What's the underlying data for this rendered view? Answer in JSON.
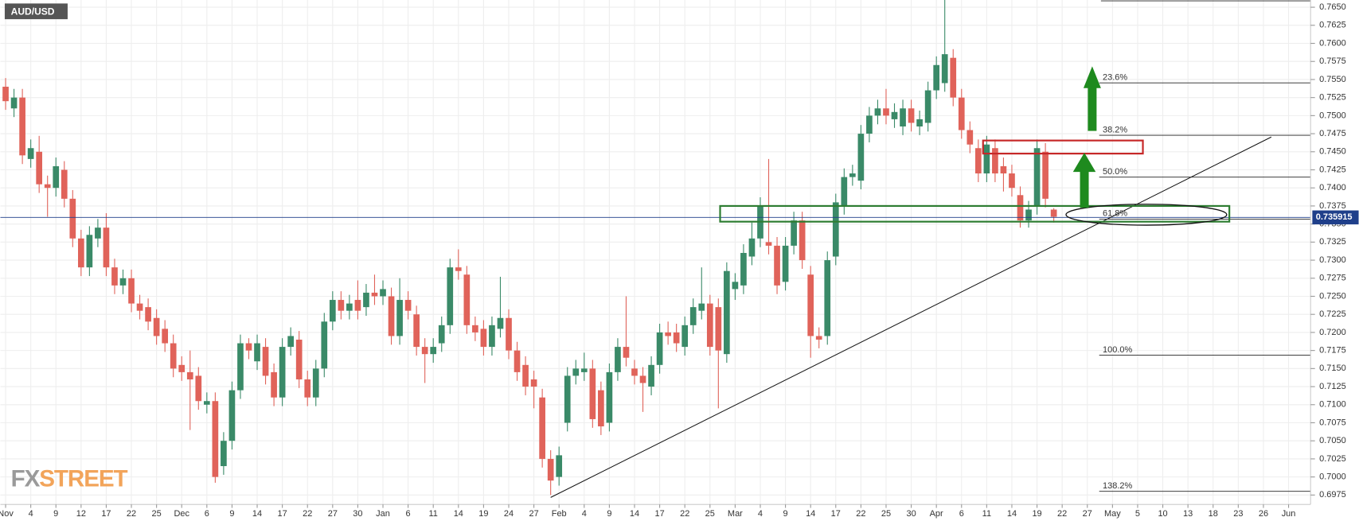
{
  "chart_data": {
    "type": "candlestick",
    "title": "AUD/USD",
    "categories": [
      "Nov",
      null,
      null,
      "4",
      null,
      null,
      "9",
      null,
      null,
      "12",
      null,
      null,
      "17",
      null,
      null,
      "22",
      null,
      null,
      "25",
      null,
      null,
      "Dec",
      null,
      null,
      "6",
      null,
      null,
      "9",
      null,
      null,
      "14",
      null,
      null,
      "17",
      null,
      null,
      "22",
      null,
      null,
      "27",
      null,
      null,
      "30",
      null,
      null,
      "Jan",
      null,
      null,
      "6",
      null,
      null,
      "11",
      null,
      null,
      "14",
      null,
      null,
      "19",
      null,
      null,
      "24",
      null,
      null,
      "27",
      null,
      null,
      "Feb",
      null,
      null,
      "4",
      null,
      null,
      "9",
      null,
      null,
      "14",
      null,
      null,
      "17",
      null,
      null,
      "22",
      null,
      null,
      "25",
      null,
      null,
      "Mar",
      null,
      null,
      "4",
      null,
      null,
      "9",
      null,
      null,
      "14",
      null,
      null,
      "17",
      null,
      null,
      "22",
      null,
      null,
      "25",
      null,
      null,
      "30",
      null,
      null,
      "Apr",
      null,
      null,
      "6",
      null,
      null,
      "11",
      null,
      null,
      "14",
      null,
      null,
      "19",
      null,
      null,
      "22",
      null,
      null,
      "27",
      null,
      null,
      "May",
      null,
      null,
      "5",
      null,
      null,
      "10",
      null,
      null,
      "13",
      null,
      null,
      "18",
      null,
      null,
      "23",
      null,
      null,
      "26",
      null,
      null,
      "Jun"
    ],
    "open": [
      0.754,
      0.751,
      0.7525,
      0.744,
      0.745,
      0.7405,
      0.74,
      0.7425,
      0.7385,
      0.733,
      0.729,
      0.733,
      0.7345,
      0.729,
      0.7265,
      0.7275,
      0.724,
      0.7235,
      0.722,
      0.7205,
      0.7185,
      0.7155,
      0.7145,
      0.714,
      0.71,
      0.7105,
      0.7015,
      0.705,
      0.712,
      0.7185,
      0.716,
      0.718,
      0.7145,
      0.711,
      0.718,
      0.719,
      0.7135,
      0.711,
      0.715,
      0.7215,
      0.7245,
      0.723,
      0.7245,
      0.7235,
      0.7255,
      0.725,
      0.725,
      0.7195,
      0.7245,
      0.7225,
      0.718,
      0.717,
      0.7185,
      0.721,
      0.729,
      0.728,
      0.721,
      0.7205,
      0.718,
      0.7205,
      0.722,
      0.7175,
      0.7155,
      0.7135,
      0.711,
      0.7025,
      0.7,
      0.7075,
      0.714,
      0.7145,
      0.715,
      0.712,
      0.7075,
      0.7145,
      0.718,
      0.715,
      0.714,
      0.7125,
      0.7155,
      0.72,
      0.72,
      0.718,
      0.721,
      0.723,
      0.724,
      0.7235,
      0.717,
      0.726,
      0.7265,
      0.7305,
      0.733,
      0.7325,
      0.732,
      0.727,
      0.732,
      0.7355,
      0.728,
      0.7195,
      0.7195,
      0.7305,
      0.7375,
      0.7415,
      0.741,
      0.7475,
      0.75,
      0.751,
      0.7495,
      0.7485,
      0.751,
      0.7485,
      0.749,
      0.7535,
      0.7545,
      0.758,
      0.7525,
      0.748,
      0.7455,
      0.742,
      0.7455,
      0.743,
      0.742,
      0.739,
      0.7355,
      0.7375,
      0.745,
      0.737,
      null,
      null,
      null,
      null,
      null,
      null,
      null,
      null,
      null,
      null,
      null,
      null,
      null,
      null,
      null,
      null,
      null,
      null,
      null,
      null,
      null,
      null,
      null,
      null,
      null,
      null,
      null,
      null
    ],
    "high": [
      0.7552,
      0.7537,
      0.7537,
      0.7467,
      0.7472,
      0.7417,
      0.7442,
      0.7437,
      0.7397,
      0.7342,
      0.7347,
      0.7357,
      0.7365,
      0.7302,
      0.7287,
      0.7287,
      0.7252,
      0.7247,
      0.7232,
      0.7217,
      0.7197,
      0.7167,
      0.7175,
      0.7152,
      0.7117,
      0.7117,
      0.7062,
      0.7132,
      0.7197,
      0.7192,
      0.7197,
      0.7192,
      0.7157,
      0.7192,
      0.7207,
      0.7202,
      0.7147,
      0.7162,
      0.7227,
      0.7257,
      0.7257,
      0.7252,
      0.7272,
      0.7267,
      0.728,
      0.7272,
      0.7262,
      0.7275,
      0.7257,
      0.7237,
      0.7192,
      0.7192,
      0.7222,
      0.7302,
      0.7315,
      0.7292,
      0.7222,
      0.7217,
      0.7222,
      0.7277,
      0.7232,
      0.7187,
      0.7167,
      0.7147,
      0.7122,
      0.7037,
      0.7042,
      0.7152,
      0.7162,
      0.7172,
      0.7162,
      0.7132,
      0.7157,
      0.7192,
      0.725,
      0.7162,
      0.7152,
      0.7167,
      0.7212,
      0.7215,
      0.7212,
      0.7222,
      0.7247,
      0.729,
      0.7252,
      0.7247,
      0.7297,
      0.7282,
      0.7322,
      0.7352,
      0.7387,
      0.744,
      0.7332,
      0.7332,
      0.7367,
      0.7367,
      0.7292,
      0.7207,
      0.7312,
      0.7392,
      0.7427,
      0.7432,
      0.7487,
      0.7512,
      0.7522,
      0.7537,
      0.7517,
      0.7522,
      0.7522,
      0.7507,
      0.7547,
      0.7582,
      0.766,
      0.7592,
      0.7537,
      0.7492,
      0.7467,
      0.7472,
      0.7467,
      0.7442,
      0.7432,
      0.7402,
      0.7382,
      0.7467,
      0.7462,
      0.7372,
      null,
      null,
      null,
      null,
      null,
      null,
      null,
      null,
      null,
      null,
      null,
      null,
      null,
      null,
      null,
      null,
      null,
      null,
      null,
      null,
      null,
      null,
      null,
      null,
      null,
      null,
      null,
      null
    ],
    "low": [
      0.7508,
      0.7498,
      0.7433,
      0.7428,
      0.7393,
      0.736,
      0.7388,
      0.7373,
      0.7318,
      0.7278,
      0.7278,
      0.7318,
      0.7278,
      0.7253,
      0.7253,
      0.7228,
      0.7218,
      0.7203,
      0.7183,
      0.7173,
      0.7138,
      0.7133,
      0.7065,
      0.7093,
      0.7088,
      0.6992,
      0.7003,
      0.7038,
      0.7108,
      0.7163,
      0.7148,
      0.7128,
      0.7098,
      0.7098,
      0.7168,
      0.7123,
      0.7098,
      0.7098,
      0.7138,
      0.7203,
      0.7218,
      0.7218,
      0.7218,
      0.7223,
      0.7238,
      0.7238,
      0.7183,
      0.7183,
      0.7218,
      0.7168,
      0.713,
      0.7158,
      0.7173,
      0.7198,
      0.7273,
      0.7198,
      0.7188,
      0.7168,
      0.7168,
      0.7193,
      0.7163,
      0.7133,
      0.7113,
      0.7095,
      0.7013,
      0.6975,
      0.6988,
      0.7063,
      0.7128,
      0.7133,
      0.7068,
      0.7058,
      0.7063,
      0.7133,
      0.7153,
      0.7128,
      0.709,
      0.7113,
      0.7143,
      0.7183,
      0.7173,
      0.7168,
      0.7198,
      0.7218,
      0.7168,
      0.7095,
      0.7158,
      0.7245,
      0.7253,
      0.7293,
      0.7318,
      0.7308,
      0.7253,
      0.7258,
      0.7308,
      0.7288,
      0.7165,
      0.7178,
      0.7183,
      0.7293,
      0.7363,
      0.7403,
      0.7398,
      0.7463,
      0.7488,
      0.7488,
      0.7483,
      0.7473,
      0.7478,
      0.7473,
      0.7478,
      0.7523,
      0.7533,
      0.7513,
      0.7468,
      0.7448,
      0.7408,
      0.7408,
      0.7408,
      0.7395,
      0.7388,
      0.7345,
      0.7345,
      0.7363,
      0.7373,
      0.7352,
      null,
      null,
      null,
      null,
      null,
      null,
      null,
      null,
      null,
      null,
      null,
      null,
      null,
      null,
      null,
      null,
      null,
      null,
      null,
      null,
      null,
      null,
      null,
      null,
      null,
      null,
      null,
      null
    ],
    "close": [
      0.752,
      0.7525,
      0.7445,
      0.7455,
      0.7405,
      0.74,
      0.743,
      0.7385,
      0.733,
      0.729,
      0.7335,
      0.7345,
      0.729,
      0.7265,
      0.7275,
      0.724,
      0.723,
      0.7215,
      0.7195,
      0.7185,
      0.715,
      0.7145,
      0.7135,
      0.7105,
      0.7105,
      0.7,
      0.705,
      0.712,
      0.7185,
      0.7175,
      0.7185,
      0.714,
      0.711,
      0.718,
      0.7195,
      0.7135,
      0.711,
      0.715,
      0.7215,
      0.7245,
      0.723,
      0.724,
      0.723,
      0.7255,
      0.725,
      0.726,
      0.7195,
      0.7245,
      0.723,
      0.718,
      0.717,
      0.718,
      0.721,
      0.729,
      0.7285,
      0.721,
      0.72,
      0.718,
      0.721,
      0.722,
      0.7175,
      0.7145,
      0.7125,
      0.7125,
      0.7025,
      0.6995,
      0.703,
      0.714,
      0.715,
      0.715,
      0.708,
      0.707,
      0.7145,
      0.718,
      0.7165,
      0.714,
      0.713,
      0.7155,
      0.72,
      0.7195,
      0.7185,
      0.721,
      0.7235,
      0.724,
      0.718,
      0.7175,
      0.7285,
      0.727,
      0.731,
      0.733,
      0.7375,
      0.732,
      0.7265,
      0.732,
      0.7355,
      0.73,
      0.7195,
      0.719,
      0.73,
      0.738,
      0.7415,
      0.742,
      0.7475,
      0.75,
      0.751,
      0.75,
      0.7505,
      0.751,
      0.749,
      0.7495,
      0.7535,
      0.757,
      0.7585,
      0.7525,
      0.748,
      0.746,
      0.742,
      0.746,
      0.742,
      0.742,
      0.74,
      0.7355,
      0.737,
      0.7455,
      0.7385,
      0.736,
      null,
      null,
      null,
      null,
      null,
      null,
      null,
      null,
      null,
      null,
      null,
      null,
      null,
      null,
      null,
      null,
      null,
      null,
      null,
      null,
      null,
      null,
      null,
      null,
      null,
      null,
      null,
      null
    ],
    "up_color": "#3a8a68",
    "down_color": "#e0635a",
    "ylim": [
      0.6962,
      0.766
    ],
    "yticks": [
      0.6975,
      {
        "value": 0.7,
        "label": "0.7000"
      },
      0.7025,
      {
        "value": 0.705,
        "label": "0.7050"
      },
      0.7075,
      {
        "value": 0.71,
        "label": "0.7100"
      },
      0.7125,
      {
        "value": 0.715,
        "label": "0.7150"
      },
      0.7175,
      {
        "value": 0.72,
        "label": "0.7200"
      },
      0.7225,
      {
        "value": 0.725,
        "label": "0.7250"
      },
      0.7275,
      {
        "value": 0.73,
        "label": "0.7300"
      },
      0.7325,
      {
        "value": 0.735,
        "label": "0.7350"
      },
      0.7375,
      {
        "value": 0.74,
        "label": "0.7400"
      },
      0.7425,
      {
        "value": 0.745,
        "label": "0.7450"
      },
      0.7475,
      {
        "value": 0.75,
        "label": "0.7500"
      },
      0.7525,
      {
        "value": 0.755,
        "label": "0.7550"
      },
      0.7575,
      {
        "value": 0.76,
        "label": "0.7600"
      },
      0.7625,
      {
        "value": 0.765,
        "label": "0.7650"
      }
    ],
    "grid": true,
    "last_price": 0.735915,
    "fib_labels": [
      "23.6%",
      "38.2%",
      "50.0%",
      "61.8%",
      "100.0%",
      "138.2%"
    ],
    "logo": [
      "FX",
      "STREET"
    ]
  }
}
